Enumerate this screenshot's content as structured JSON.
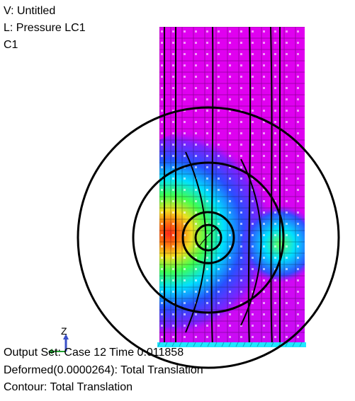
{
  "header": {
    "view": "V: Untitled",
    "load": "L: Pressure LC1",
    "contour": "C1"
  },
  "footer": {
    "output_set": "Output Set: Case 12 Time 0.011858",
    "deformed": "Deformed(0.0000264): Total Translation",
    "contour": "Contour: Total Translation"
  },
  "axes": {
    "z_label": "Z"
  },
  "colors": {
    "background": "#ffffff",
    "mesh_base": "#e000f0",
    "contour_blue": "#2a40ff",
    "contour_cyan": "#00d8ff",
    "contour_green": "#40ff60",
    "contour_yellow": "#e8f020",
    "contour_red": "#ff3018",
    "ring_stroke": "#000000",
    "support_strip": "#20e8ff"
  }
}
